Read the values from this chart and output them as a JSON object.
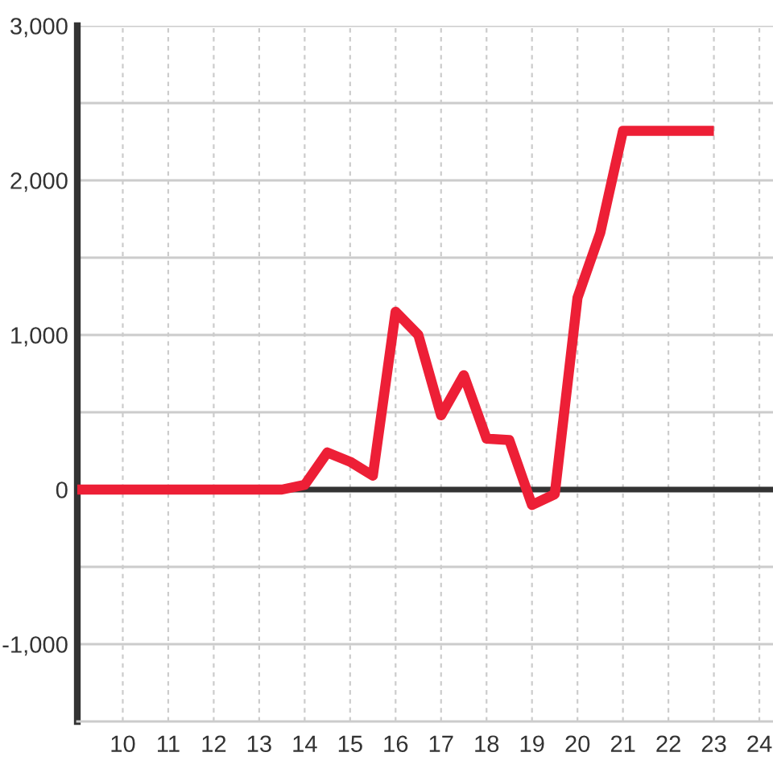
{
  "chart_data": {
    "type": "line",
    "x": [
      9,
      13.5,
      14,
      14.5,
      15,
      15.5,
      16,
      16.5,
      17,
      17.5,
      18,
      18.5,
      19,
      19.5,
      20,
      20.5,
      21,
      23
    ],
    "series": [
      {
        "color": "#ed1f36",
        "values": [
          0,
          0,
          30,
          240,
          180,
          90,
          1150,
          1000,
          480,
          740,
          330,
          320,
          -100,
          -30,
          1240,
          1660,
          2320,
          2320
        ]
      }
    ],
    "xlim": [
      9,
      24.3
    ],
    "xticks": [
      10,
      11,
      12,
      13,
      14,
      15,
      16,
      17,
      18,
      19,
      20,
      21,
      22,
      23,
      24
    ],
    "ylim": [
      -1500,
      3000
    ],
    "yticks": [
      {
        "value": -1000,
        "label": "-1,000"
      },
      {
        "value": -500,
        "label": null
      },
      0,
      {
        "value": 500,
        "label": null
      },
      {
        "value": 1000,
        "label": "1,000"
      },
      {
        "value": 1500,
        "label": null
      },
      {
        "value": 2000,
        "label": "2,000"
      },
      {
        "value": 2500,
        "label": null
      },
      {
        "value": 3000,
        "label": "3,000"
      }
    ],
    "ref_lines": [
      {
        "axis": "y",
        "value": 0,
        "color": "#333333"
      }
    ],
    "grid": true,
    "marker": "none",
    "line_style": "solid"
  }
}
